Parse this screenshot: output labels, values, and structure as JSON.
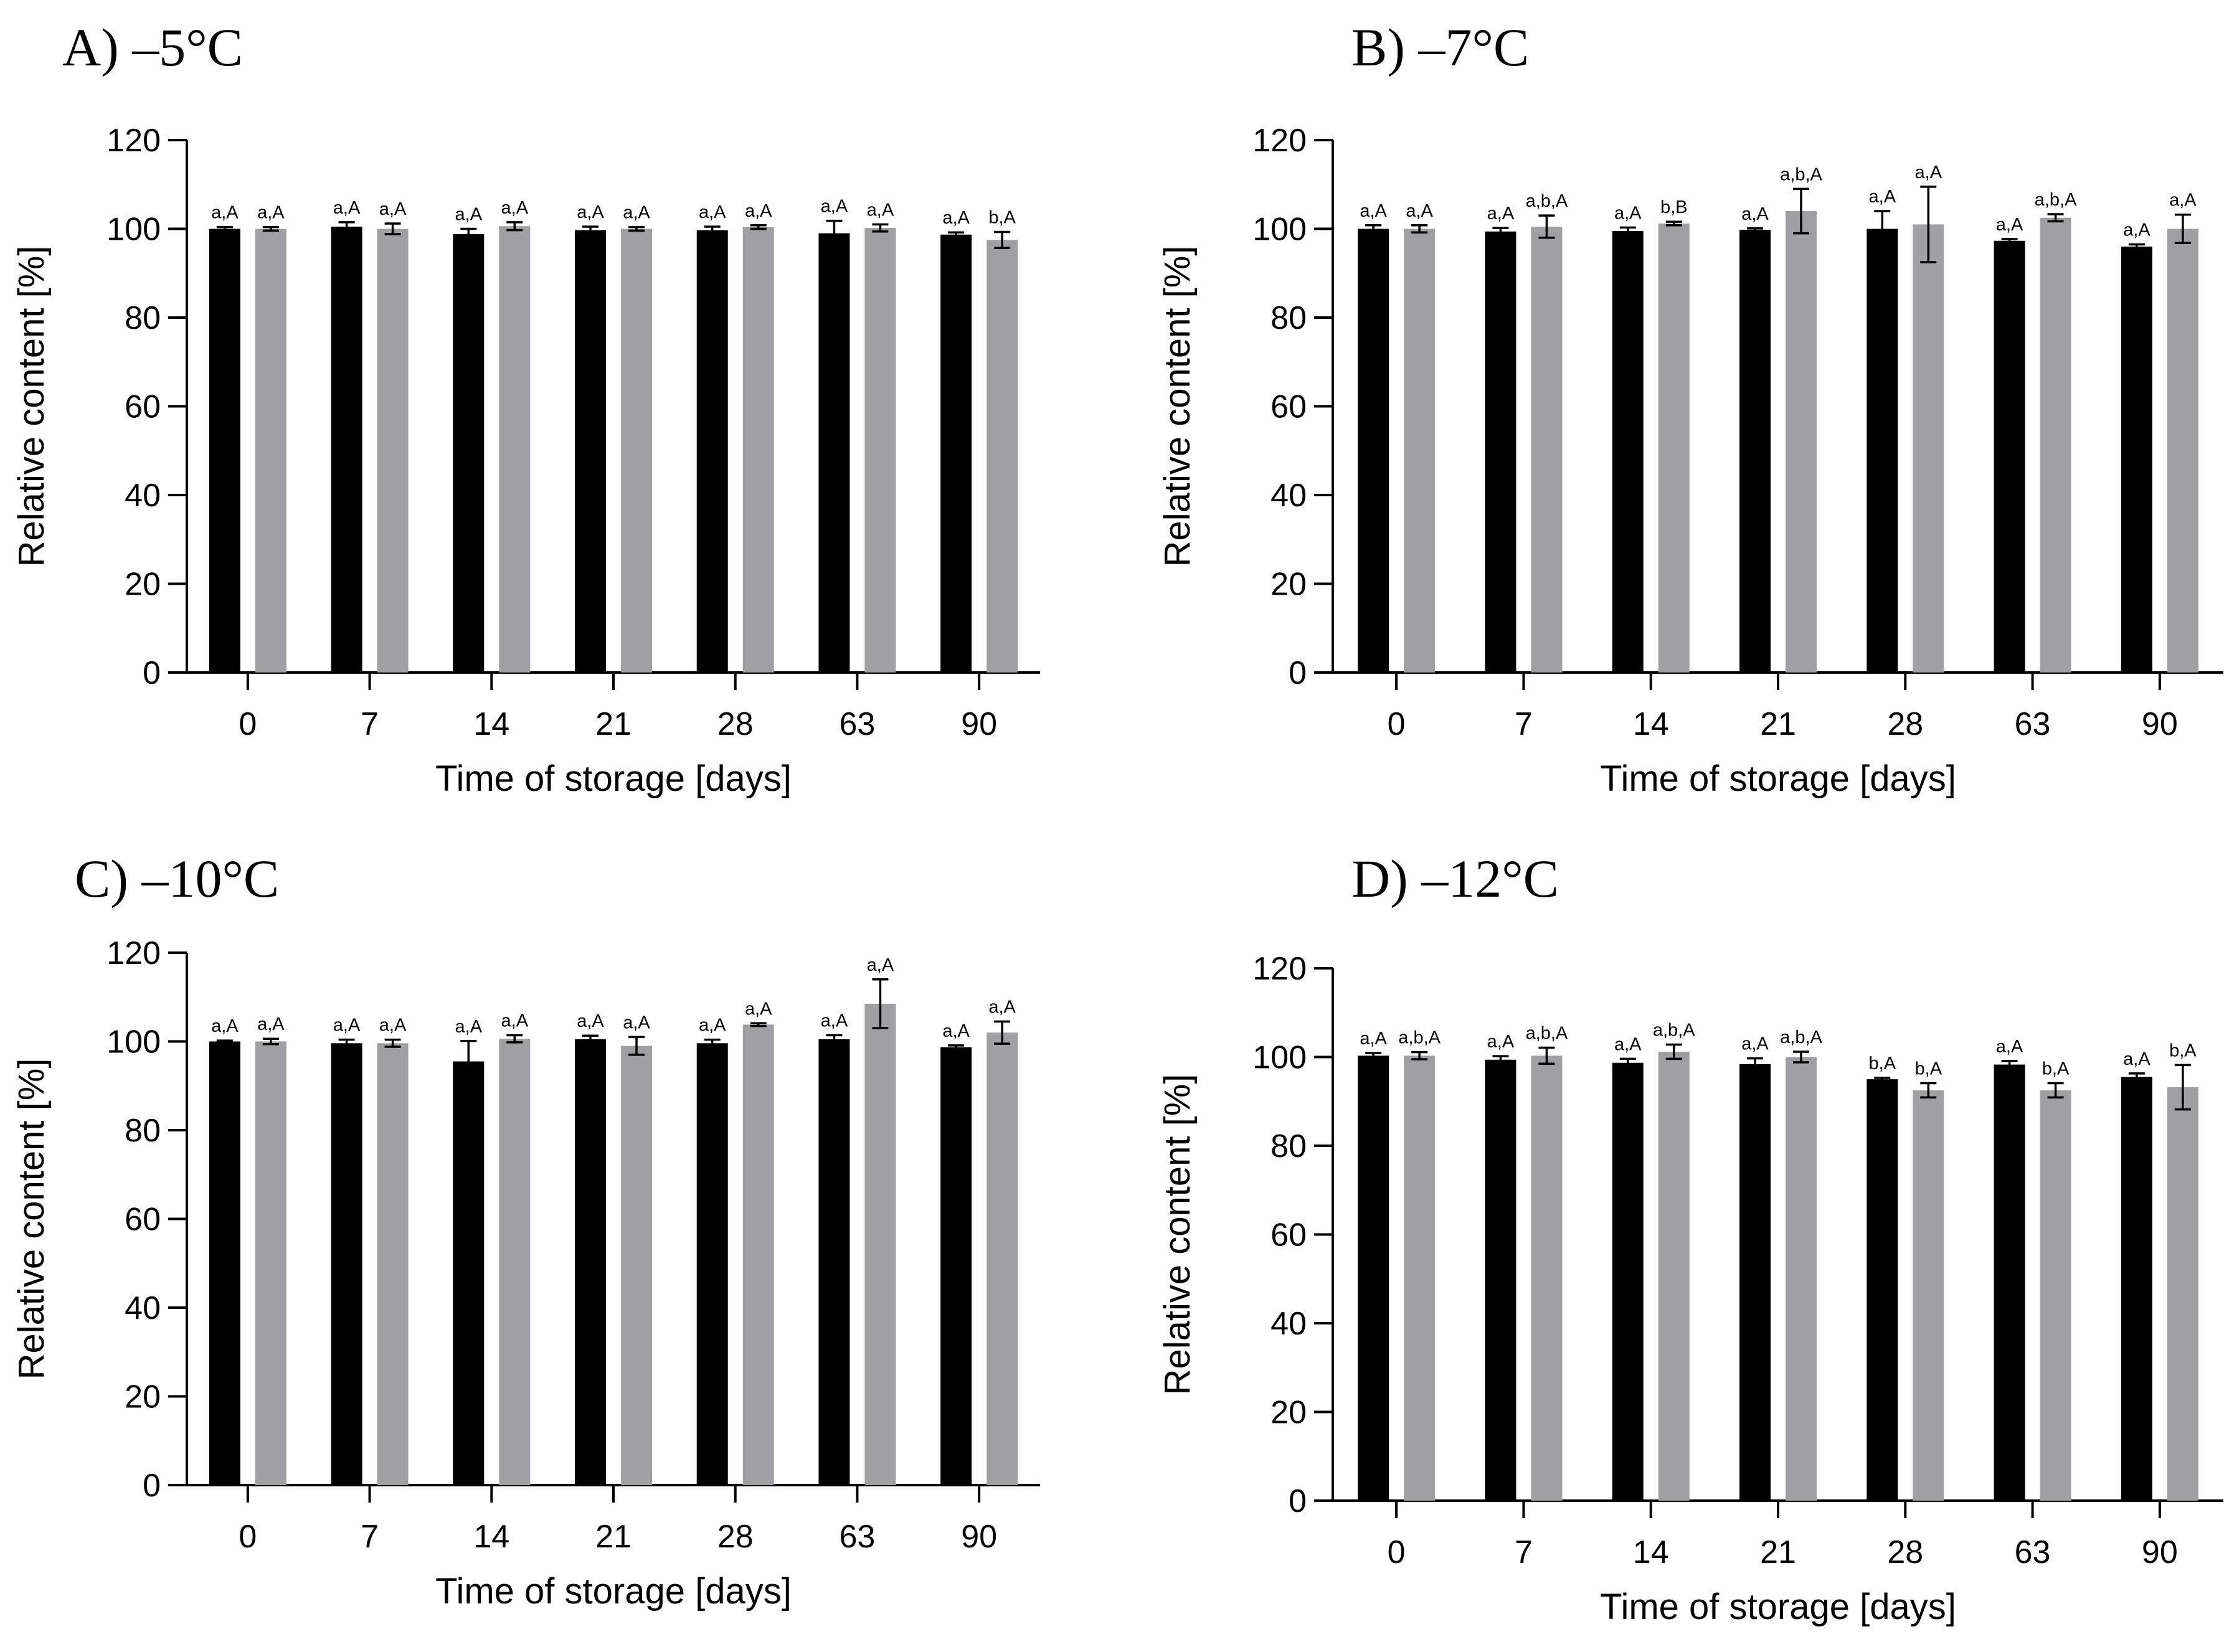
{
  "figure": {
    "caption": ""
  },
  "chart_data": [
    {
      "panel": "A",
      "type": "bar",
      "title": "A)  –5°C",
      "xlabel": "Time of storage [days]",
      "ylabel": "Relative content [%]",
      "ylim": [
        0,
        120
      ],
      "yticks": [
        "0",
        "20",
        "40",
        "60",
        "80",
        "100",
        "120"
      ],
      "categories": [
        "0",
        "7",
        "14",
        "21",
        "28",
        "63",
        "90"
      ],
      "colors": {
        "black": "#000000",
        "grey": "#A0A0A4"
      },
      "series": [
        {
          "name": "black",
          "values": [
            100.0,
            100.5,
            98.8,
            99.7,
            99.7,
            99.0,
            98.7
          ],
          "errors": [
            0.4,
            1.0,
            1.2,
            0.8,
            0.8,
            2.8,
            0.5
          ],
          "labels": [
            "a,A",
            "a,A",
            "a,A",
            "a,A",
            "a,A",
            "a,A",
            "a,A"
          ]
        },
        {
          "name": "grey",
          "values": [
            100.0,
            100.0,
            100.6,
            100.0,
            100.4,
            100.2,
            97.5
          ],
          "errors": [
            0.4,
            1.2,
            0.9,
            0.4,
            0.4,
            0.8,
            1.8
          ],
          "labels": [
            "a,A",
            "a,A",
            "a,A",
            "a,A",
            "a,A",
            "a,A",
            "b,A"
          ]
        }
      ]
    },
    {
      "panel": "B",
      "type": "bar",
      "title": "B) –7°C",
      "xlabel": "Time of storage [days]",
      "ylabel": "Relative content [%]",
      "ylim": [
        0,
        120
      ],
      "yticks": [
        "0",
        "20",
        "40",
        "60",
        "80",
        "100",
        "120"
      ],
      "categories": [
        "0",
        "7",
        "14",
        "21",
        "28",
        "63",
        "90"
      ],
      "colors": {
        "black": "#000000",
        "grey": "#A0A0A4"
      },
      "series": [
        {
          "name": "black",
          "values": [
            100.0,
            99.4,
            99.5,
            99.8,
            100.0,
            97.3,
            96.0
          ],
          "errors": [
            0.8,
            0.8,
            0.8,
            0.3,
            4.0,
            0.4,
            0.5
          ],
          "labels": [
            "a,A",
            "a,A",
            "a,A",
            "a,A",
            "a,A",
            "a,A",
            "a,A"
          ]
        },
        {
          "name": "grey",
          "values": [
            100.0,
            100.5,
            101.2,
            104.0,
            101.0,
            102.5,
            100.0
          ],
          "errors": [
            0.8,
            2.5,
            0.4,
            5.0,
            8.5,
            0.8,
            3.2
          ],
          "labels": [
            "a,A",
            "a,b,A",
            "b,B",
            "a,b,A",
            "a,A",
            "a,b,A",
            "a,A"
          ]
        }
      ]
    },
    {
      "panel": "C",
      "type": "bar",
      "title": "C)  –10°C",
      "xlabel": "Time of storage [days]",
      "ylabel": "Relative content [%]",
      "ylim": [
        0,
        120
      ],
      "yticks": [
        "0",
        "20",
        "40",
        "60",
        "80",
        "100",
        "120"
      ],
      "categories": [
        "0",
        "7",
        "14",
        "21",
        "28",
        "63",
        "90"
      ],
      "colors": {
        "black": "#000000",
        "grey": "#A0A0A4"
      },
      "series": [
        {
          "name": "black",
          "values": [
            100.0,
            99.6,
            95.5,
            100.5,
            99.6,
            100.5,
            98.7
          ],
          "errors": [
            0.2,
            0.8,
            4.6,
            0.8,
            0.8,
            0.9,
            0.4
          ],
          "labels": [
            "a,A",
            "a,A",
            "a,A",
            "a,A",
            "a,A",
            "a,A",
            "a,A"
          ]
        },
        {
          "name": "grey",
          "values": [
            100.0,
            99.6,
            100.6,
            99.0,
            103.8,
            108.5,
            102.0
          ],
          "errors": [
            0.6,
            0.8,
            0.8,
            2.0,
            0.3,
            5.5,
            2.5
          ],
          "labels": [
            "a,A",
            "a,A",
            "a,A",
            "a,A",
            "a,A",
            "a,A",
            "a,A"
          ]
        }
      ]
    },
    {
      "panel": "D",
      "type": "bar",
      "title": "D) –12°C",
      "xlabel": "Time of storage [days]",
      "ylabel": "Relative content [%]",
      "ylim": [
        0,
        120
      ],
      "yticks": [
        "0",
        "20",
        "40",
        "60",
        "80",
        "100",
        "120"
      ],
      "categories": [
        "0",
        "7",
        "14",
        "21",
        "28",
        "63",
        "90"
      ],
      "colors": {
        "black": "#000000",
        "grey": "#A0A0A4"
      },
      "series": [
        {
          "name": "black",
          "values": [
            100.3,
            99.4,
            98.7,
            98.4,
            95.0,
            98.3,
            95.5
          ],
          "errors": [
            0.6,
            0.8,
            0.9,
            1.3,
            0.3,
            0.8,
            0.8
          ],
          "labels": [
            "a,A",
            "a,A",
            "a,A",
            "a,A",
            "b,A",
            "a,A",
            "a,A"
          ]
        },
        {
          "name": "grey",
          "values": [
            100.3,
            100.3,
            101.2,
            100.0,
            92.5,
            92.5,
            93.2
          ],
          "errors": [
            0.8,
            1.8,
            1.6,
            1.2,
            1.6,
            1.6,
            5.0
          ],
          "labels": [
            "a,b,A",
            "a,b,A",
            "a,b,A",
            "a,b,A",
            "b,A",
            "b,A",
            "b,A"
          ]
        }
      ]
    }
  ]
}
